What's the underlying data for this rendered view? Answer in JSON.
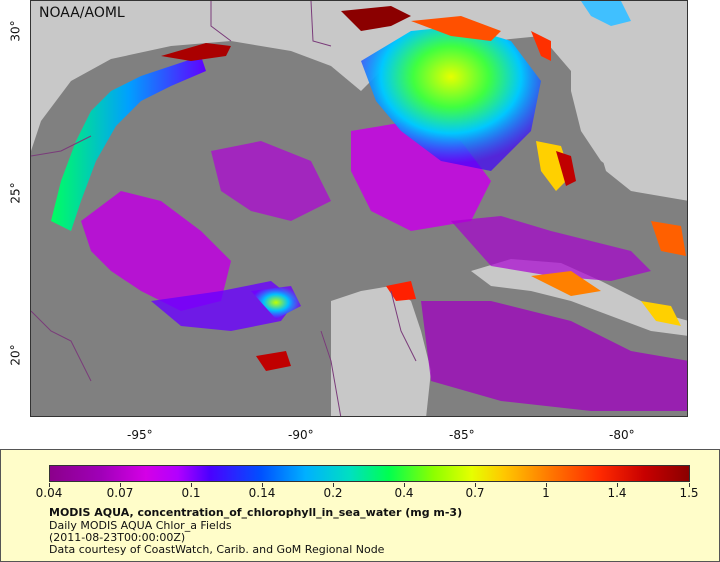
{
  "map": {
    "credit": "NOAA/AOML",
    "lon_labels": [
      "-95°",
      "-90°",
      "-85°",
      "-80°"
    ],
    "lat_labels": [
      "30°",
      "25°",
      "20°"
    ],
    "colors": {
      "land": "#c8c8c8",
      "no_data": "#808080",
      "border": "#7a3b7a"
    }
  },
  "legend": {
    "colorbar_labels": [
      "0.04",
      "0.07",
      "0.1",
      "0.14",
      "0.2",
      "0.4",
      "0.7",
      "1",
      "1.4",
      "1.5"
    ],
    "title": "MODIS AQUA, concentration_of_chlorophyll_in_sea_water (mg m-3)",
    "line1": "Daily MODIS AQUA Chlor_a Fields",
    "line2": "(2011-08-23T00:00:00Z)",
    "line3": "Data courtesy of CoastWatch, Carib. and GoM Regional Node"
  }
}
